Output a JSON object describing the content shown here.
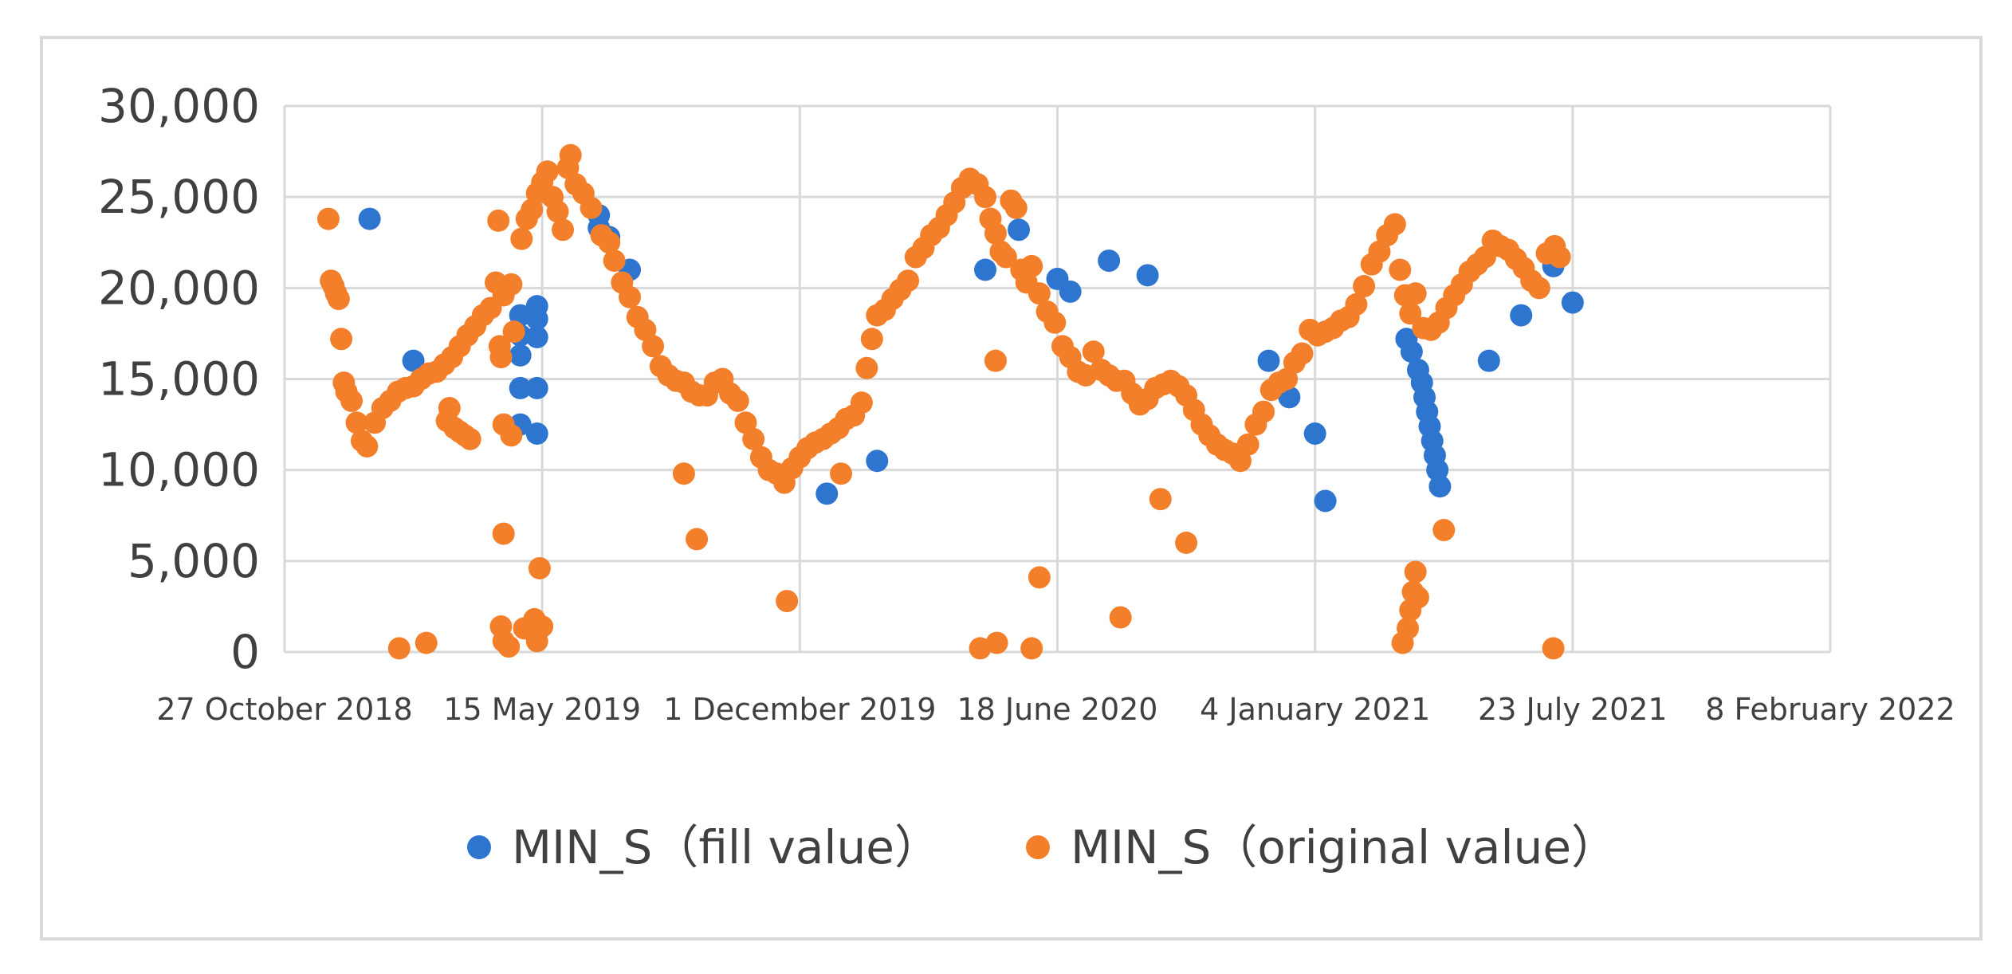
{
  "chart_data": {
    "type": "scatter",
    "title": "",
    "xlabel": "",
    "ylabel": "",
    "x_ticks": [
      "27 October 2018",
      "15 May 2019",
      "1 December 2019",
      "18 June 2020",
      "4 January 2021",
      "23 July 2021",
      "8 February 2022"
    ],
    "y_ticks": [
      "0",
      "5,000",
      "10,000",
      "15,000",
      "20,000",
      "25,000",
      "30,000"
    ],
    "x_range_days": [
      0,
      1200
    ],
    "ylim": [
      0,
      30000
    ],
    "grid": true,
    "legend_position": "bottom",
    "colors": {
      "fill": "#2e75d0",
      "original": "#f47f2a"
    },
    "series": [
      {
        "name": "MIN_S（fill value）",
        "points": [
          [
            66,
            23800
          ],
          [
            100,
            16000
          ],
          [
            183,
            18500
          ],
          [
            183,
            17400
          ],
          [
            183,
            16300
          ],
          [
            183,
            14500
          ],
          [
            183,
            12500
          ],
          [
            196,
            19000
          ],
          [
            196,
            18300
          ],
          [
            196,
            17300
          ],
          [
            196,
            14500
          ],
          [
            196,
            12000
          ],
          [
            244,
            24000
          ],
          [
            244,
            23300
          ],
          [
            252,
            22800
          ],
          [
            268,
            21000
          ],
          [
            421,
            8700
          ],
          [
            460,
            10500
          ],
          [
            544,
            21000
          ],
          [
            570,
            23200
          ],
          [
            600,
            20500
          ],
          [
            610,
            19800
          ],
          [
            640,
            21500
          ],
          [
            670,
            20700
          ],
          [
            764,
            16000
          ],
          [
            780,
            14000
          ],
          [
            800,
            12000
          ],
          [
            808,
            8300
          ],
          [
            871,
            17200
          ],
          [
            875,
            16500
          ],
          [
            880,
            15500
          ],
          [
            883,
            14800
          ],
          [
            885,
            14000
          ],
          [
            887,
            13200
          ],
          [
            889,
            12400
          ],
          [
            891,
            11600
          ],
          [
            893,
            10800
          ],
          [
            895,
            10000
          ],
          [
            897,
            9100
          ],
          [
            935,
            16000
          ],
          [
            960,
            18500
          ],
          [
            985,
            21200
          ],
          [
            1000,
            19200
          ]
        ]
      },
      {
        "name": "MIN_S（original value）",
        "points": [
          [
            34,
            23800
          ],
          [
            36,
            20400
          ],
          [
            38,
            20100
          ],
          [
            40,
            19700
          ],
          [
            42,
            19400
          ],
          [
            44,
            17200
          ],
          [
            46,
            14800
          ],
          [
            48,
            14300
          ],
          [
            52,
            13800
          ],
          [
            56,
            12600
          ],
          [
            60,
            11600
          ],
          [
            64,
            11300
          ],
          [
            70,
            12600
          ],
          [
            76,
            13400
          ],
          [
            82,
            13800
          ],
          [
            88,
            14300
          ],
          [
            94,
            14500
          ],
          [
            100,
            14600
          ],
          [
            106,
            15000
          ],
          [
            112,
            15300
          ],
          [
            118,
            15400
          ],
          [
            124,
            15800
          ],
          [
            130,
            16200
          ],
          [
            136,
            16800
          ],
          [
            142,
            17400
          ],
          [
            148,
            17900
          ],
          [
            154,
            18500
          ],
          [
            160,
            18900
          ],
          [
            164,
            20300
          ],
          [
            166,
            23700
          ],
          [
            170,
            19600
          ],
          [
            176,
            20200
          ],
          [
            184,
            22700
          ],
          [
            188,
            23800
          ],
          [
            192,
            24300
          ],
          [
            196,
            25200
          ],
          [
            200,
            25800
          ],
          [
            204,
            26400
          ],
          [
            208,
            25000
          ],
          [
            212,
            24200
          ],
          [
            216,
            23200
          ],
          [
            220,
            26600
          ],
          [
            222,
            27300
          ],
          [
            226,
            25700
          ],
          [
            232,
            25200
          ],
          [
            238,
            24400
          ],
          [
            246,
            22900
          ],
          [
            252,
            22500
          ],
          [
            256,
            21500
          ],
          [
            262,
            20300
          ],
          [
            268,
            19500
          ],
          [
            274,
            18400
          ],
          [
            280,
            17700
          ],
          [
            286,
            16800
          ],
          [
            292,
            15700
          ],
          [
            298,
            15200
          ],
          [
            304,
            14900
          ],
          [
            310,
            14800
          ],
          [
            316,
            14300
          ],
          [
            322,
            14100
          ],
          [
            328,
            14100
          ],
          [
            334,
            14800
          ],
          [
            340,
            15000
          ],
          [
            346,
            14200
          ],
          [
            352,
            13800
          ],
          [
            358,
            12600
          ],
          [
            364,
            11700
          ],
          [
            370,
            10700
          ],
          [
            376,
            10000
          ],
          [
            382,
            9800
          ],
          [
            388,
            9300
          ],
          [
            394,
            10100
          ],
          [
            400,
            10700
          ],
          [
            406,
            11200
          ],
          [
            412,
            11500
          ],
          [
            418,
            11700
          ],
          [
            424,
            12000
          ],
          [
            430,
            12300
          ],
          [
            436,
            12800
          ],
          [
            442,
            13000
          ],
          [
            448,
            13700
          ],
          [
            452,
            15600
          ],
          [
            456,
            17200
          ],
          [
            460,
            18500
          ],
          [
            466,
            18800
          ],
          [
            472,
            19400
          ],
          [
            478,
            19900
          ],
          [
            484,
            20400
          ],
          [
            490,
            21700
          ],
          [
            496,
            22200
          ],
          [
            502,
            22900
          ],
          [
            508,
            23300
          ],
          [
            514,
            24000
          ],
          [
            520,
            24700
          ],
          [
            526,
            25500
          ],
          [
            532,
            26000
          ],
          [
            538,
            25700
          ],
          [
            544,
            25000
          ],
          [
            548,
            23800
          ],
          [
            552,
            23000
          ],
          [
            556,
            22000
          ],
          [
            560,
            21700
          ],
          [
            564,
            24800
          ],
          [
            568,
            24400
          ],
          [
            572,
            21000
          ],
          [
            576,
            20300
          ],
          [
            580,
            21200
          ],
          [
            586,
            19700
          ],
          [
            592,
            18700
          ],
          [
            598,
            18100
          ],
          [
            604,
            16800
          ],
          [
            610,
            16200
          ],
          [
            616,
            15400
          ],
          [
            622,
            15200
          ],
          [
            628,
            16500
          ],
          [
            634,
            15500
          ],
          [
            640,
            15200
          ],
          [
            646,
            14900
          ],
          [
            652,
            14900
          ],
          [
            658,
            14200
          ],
          [
            664,
            13600
          ],
          [
            670,
            13900
          ],
          [
            676,
            14500
          ],
          [
            682,
            14700
          ],
          [
            688,
            14900
          ],
          [
            694,
            14600
          ],
          [
            700,
            14100
          ],
          [
            706,
            13300
          ],
          [
            712,
            12500
          ],
          [
            718,
            11900
          ],
          [
            724,
            11400
          ],
          [
            730,
            11100
          ],
          [
            736,
            10900
          ],
          [
            742,
            10500
          ],
          [
            748,
            11400
          ],
          [
            754,
            12500
          ],
          [
            760,
            13200
          ],
          [
            766,
            14400
          ],
          [
            772,
            14800
          ],
          [
            778,
            15000
          ],
          [
            784,
            15900
          ],
          [
            790,
            16400
          ],
          [
            796,
            17700
          ],
          [
            802,
            17400
          ],
          [
            808,
            17600
          ],
          [
            814,
            17800
          ],
          [
            820,
            18200
          ],
          [
            826,
            18400
          ],
          [
            832,
            19100
          ],
          [
            838,
            20100
          ],
          [
            844,
            21300
          ],
          [
            850,
            22000
          ],
          [
            856,
            22900
          ],
          [
            862,
            23500
          ],
          [
            866,
            21000
          ],
          [
            870,
            19600
          ],
          [
            874,
            18600
          ],
          [
            878,
            19700
          ],
          [
            884,
            17800
          ],
          [
            890,
            17700
          ],
          [
            896,
            18100
          ],
          [
            902,
            18900
          ],
          [
            908,
            19600
          ],
          [
            914,
            20200
          ],
          [
            920,
            20900
          ],
          [
            926,
            21300
          ],
          [
            932,
            21700
          ],
          [
            938,
            22600
          ],
          [
            944,
            22300
          ],
          [
            950,
            22100
          ],
          [
            956,
            21600
          ],
          [
            962,
            21100
          ],
          [
            968,
            20400
          ],
          [
            974,
            20000
          ],
          [
            980,
            21900
          ],
          [
            986,
            22300
          ],
          [
            990,
            21700
          ],
          [
            167,
            16800
          ],
          [
            168,
            16200
          ],
          [
            170,
            12500
          ],
          [
            178,
            17600
          ],
          [
            176,
            11900
          ],
          [
            132,
            12300
          ],
          [
            136,
            12100
          ],
          [
            140,
            11900
          ],
          [
            144,
            11700
          ],
          [
            126,
            12700
          ],
          [
            128,
            13400
          ],
          [
            310,
            9800
          ],
          [
            432,
            9800
          ],
          [
            552,
            16000
          ],
          [
            680,
            8400
          ],
          [
            170,
            6500
          ],
          [
            168,
            1400
          ],
          [
            170,
            600
          ],
          [
            174,
            300
          ],
          [
            186,
            1300
          ],
          [
            194,
            1800
          ],
          [
            196,
            600
          ],
          [
            200,
            1400
          ],
          [
            198,
            4600
          ],
          [
            89,
            200
          ],
          [
            110,
            500
          ],
          [
            320,
            6200
          ],
          [
            390,
            2800
          ],
          [
            540,
            200
          ],
          [
            553,
            500
          ],
          [
            580,
            200
          ],
          [
            586,
            4100
          ],
          [
            649,
            1900
          ],
          [
            700,
            6000
          ],
          [
            868,
            500
          ],
          [
            872,
            1300
          ],
          [
            874,
            2300
          ],
          [
            876,
            3300
          ],
          [
            878,
            4400
          ],
          [
            880,
            3000
          ],
          [
            900,
            6700
          ],
          [
            985,
            200
          ]
        ]
      }
    ]
  }
}
